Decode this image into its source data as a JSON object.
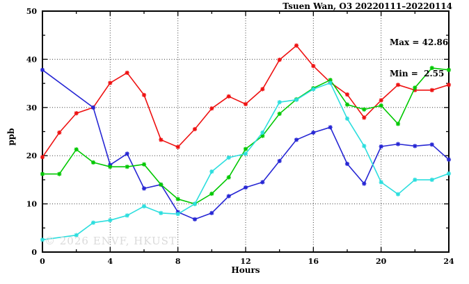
{
  "title": "Tsuen Wan, O3 20220111–20220114",
  "watermark": "© 2026 ENVF, HKUST",
  "annotation": {
    "max_label": "Max = 42.86",
    "min_label": "Min =  2.55"
  },
  "colors": {
    "axis": "#000000",
    "grid": "#3a3a3a",
    "watermark": "#dadada",
    "red_series": "#ee1111",
    "blue_series": "#2626d4",
    "green_series": "#00c800",
    "cyan_series": "#2cdede"
  },
  "chart_data": {
    "type": "line",
    "title": "Tsuen Wan, O3 20220111–20220114",
    "xlabel": "Hours",
    "ylabel": "ppb",
    "xlim": [
      0,
      24
    ],
    "ylim": [
      0,
      50
    ],
    "x_major_ticks": [
      0,
      4,
      8,
      12,
      16,
      20,
      24
    ],
    "x_minor_ticks": [
      2,
      6,
      10,
      14,
      18,
      22
    ],
    "y_major_ticks": [
      0,
      10,
      20,
      30,
      40,
      50
    ],
    "y_minor_ticks": [
      5,
      15,
      25,
      35,
      45
    ],
    "grid_vertical_at_hours": [
      4,
      8,
      12,
      16,
      20
    ],
    "grid_horizontal_at_ppb": [
      10,
      20,
      30,
      40
    ],
    "legend_position": "none",
    "max_value": 42.86,
    "min_value": 2.55,
    "x": [
      0,
      1,
      2,
      3,
      4,
      5,
      6,
      7,
      8,
      9,
      10,
      11,
      12,
      13,
      14,
      15,
      16,
      17,
      18,
      19,
      20,
      21,
      22,
      23,
      24
    ],
    "series": [
      {
        "name": "red-series",
        "color": "#ee1111",
        "values": [
          19.7,
          24.8,
          28.8,
          30.0,
          35.1,
          37.2,
          32.6,
          23.3,
          21.8,
          25.5,
          29.8,
          32.3,
          30.7,
          33.8,
          39.9,
          42.86,
          38.6,
          35.2,
          32.7,
          27.9,
          31.5,
          34.7,
          33.6,
          33.6,
          34.7
        ]
      },
      {
        "name": "blue-series",
        "color": "#2626d4",
        "values": [
          37.8,
          null,
          null,
          30.0,
          18.1,
          20.4,
          13.2,
          14.0,
          8.3,
          6.8,
          8.1,
          11.6,
          13.4,
          14.5,
          18.9,
          23.3,
          24.8,
          25.9,
          18.3,
          14.2,
          21.9,
          22.4,
          22.0,
          22.3,
          19.2
        ]
      },
      {
        "name": "green-series",
        "color": "#00c800",
        "values": [
          16.2,
          16.2,
          21.3,
          18.6,
          17.7,
          17.7,
          18.2,
          14.0,
          11.0,
          10.0,
          12.1,
          15.5,
          21.4,
          24.1,
          28.7,
          31.7,
          34.0,
          35.7,
          30.6,
          29.6,
          30.4,
          26.6,
          34.1,
          38.2,
          37.8
        ]
      },
      {
        "name": "cyan-series",
        "color": "#2cdede",
        "values": [
          2.55,
          null,
          3.5,
          6.1,
          6.6,
          7.6,
          9.5,
          8.1,
          7.9,
          10.0,
          16.7,
          19.6,
          20.4,
          24.8,
          31.1,
          31.6,
          33.8,
          35.1,
          27.7,
          22.0,
          14.5,
          12.0,
          15.0,
          15.0,
          16.3
        ]
      }
    ]
  }
}
